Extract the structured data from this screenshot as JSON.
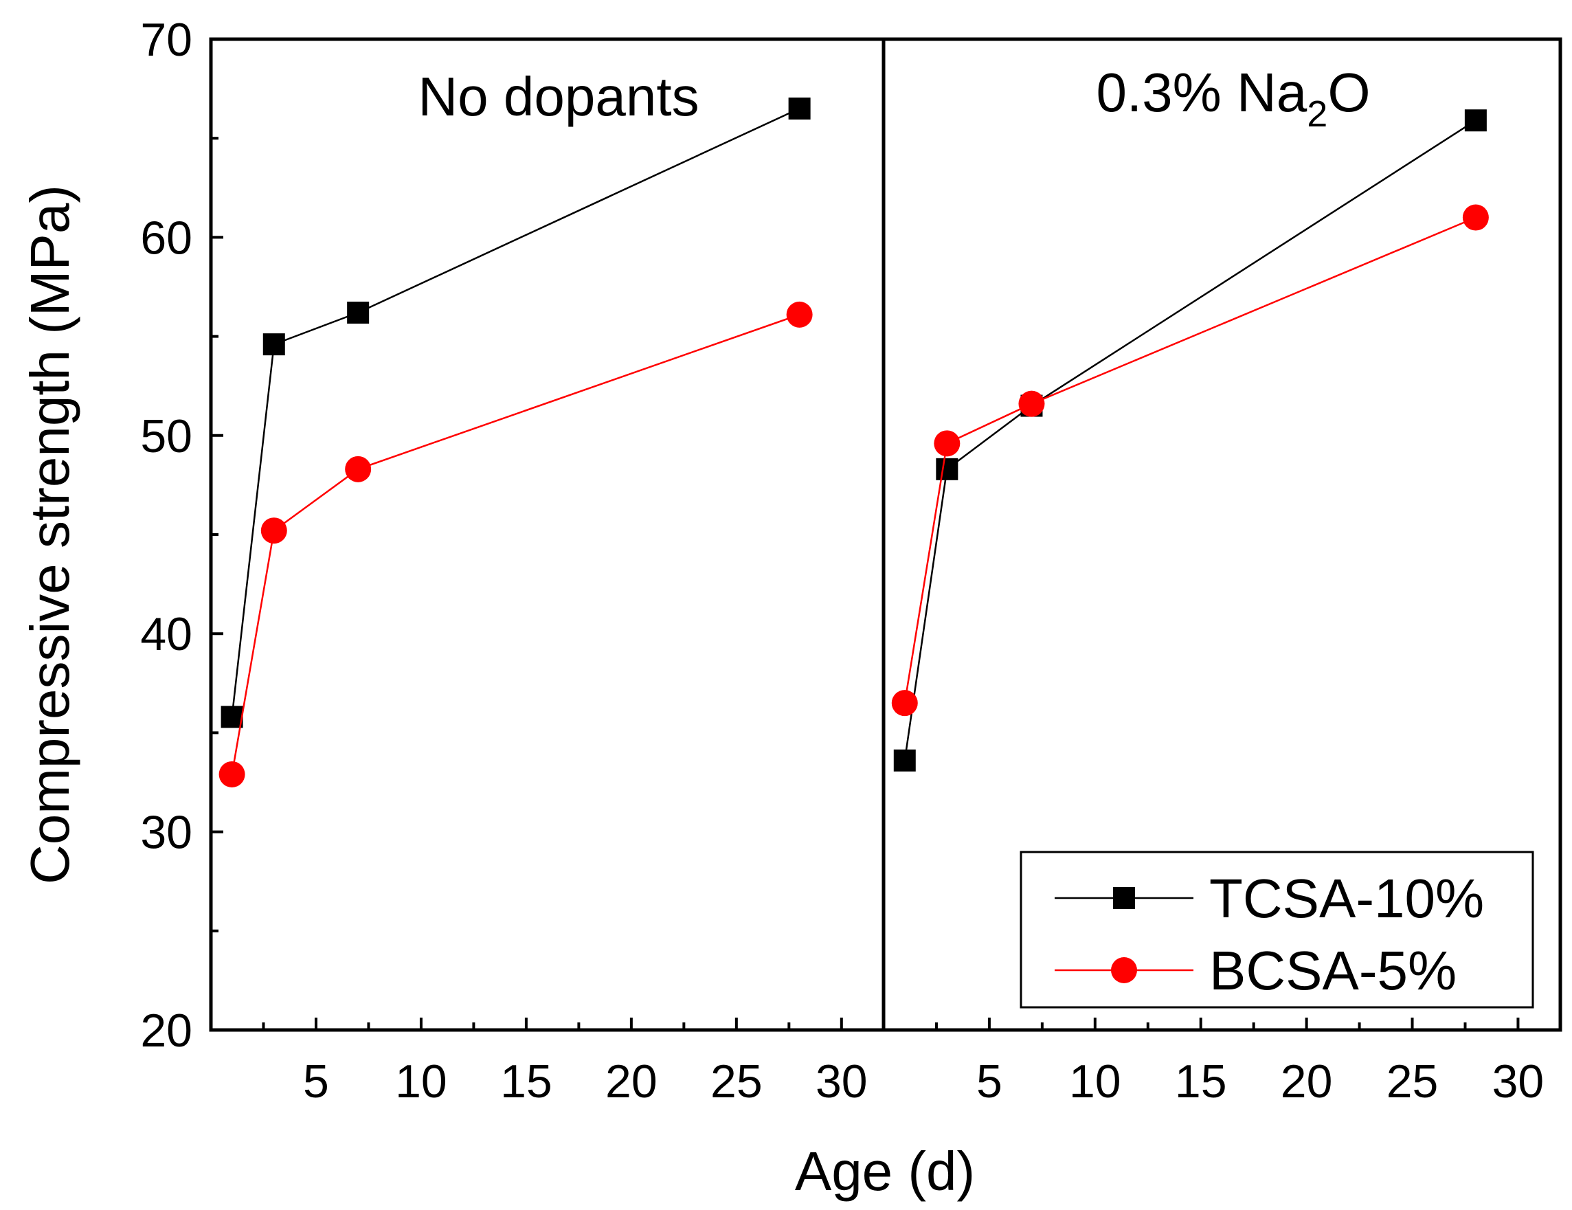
{
  "chart_data": {
    "type": "line",
    "ylabel": "Compressive strength (MPa)",
    "xlabel": "Age (d)",
    "ylim": [
      20,
      70
    ],
    "yticks": [
      20,
      30,
      40,
      50,
      60,
      70
    ],
    "xlim": [
      0,
      32
    ],
    "xticks": [
      5,
      10,
      15,
      20,
      25,
      30
    ],
    "colors": {
      "TCSA-10%": "#000000",
      "BCSA-5%": "#ff0000"
    },
    "legend": {
      "position": "bottom-right",
      "entries": [
        "TCSA-10%",
        "BCSA-5%"
      ]
    },
    "panels": [
      {
        "title_text": "No dopants",
        "series": [
          {
            "name": "TCSA-10%",
            "marker": "square",
            "x": [
              1,
              3,
              7,
              28
            ],
            "y": [
              35.8,
              54.6,
              56.2,
              66.5
            ]
          },
          {
            "name": "BCSA-5%",
            "marker": "circle",
            "x": [
              1,
              3,
              7,
              28
            ],
            "y": [
              32.9,
              45.2,
              48.3,
              56.1
            ]
          }
        ]
      },
      {
        "title_text": "0.3% Na",
        "title_subscript": "2",
        "title_suffix": "O",
        "series": [
          {
            "name": "TCSA-10%",
            "marker": "square",
            "x": [
              1,
              3,
              7,
              28
            ],
            "y": [
              33.6,
              48.3,
              51.5,
              65.9
            ]
          },
          {
            "name": "BCSA-5%",
            "marker": "circle",
            "x": [
              1,
              3,
              7,
              28
            ],
            "y": [
              36.5,
              49.6,
              51.6,
              61.0
            ]
          }
        ]
      }
    ]
  }
}
